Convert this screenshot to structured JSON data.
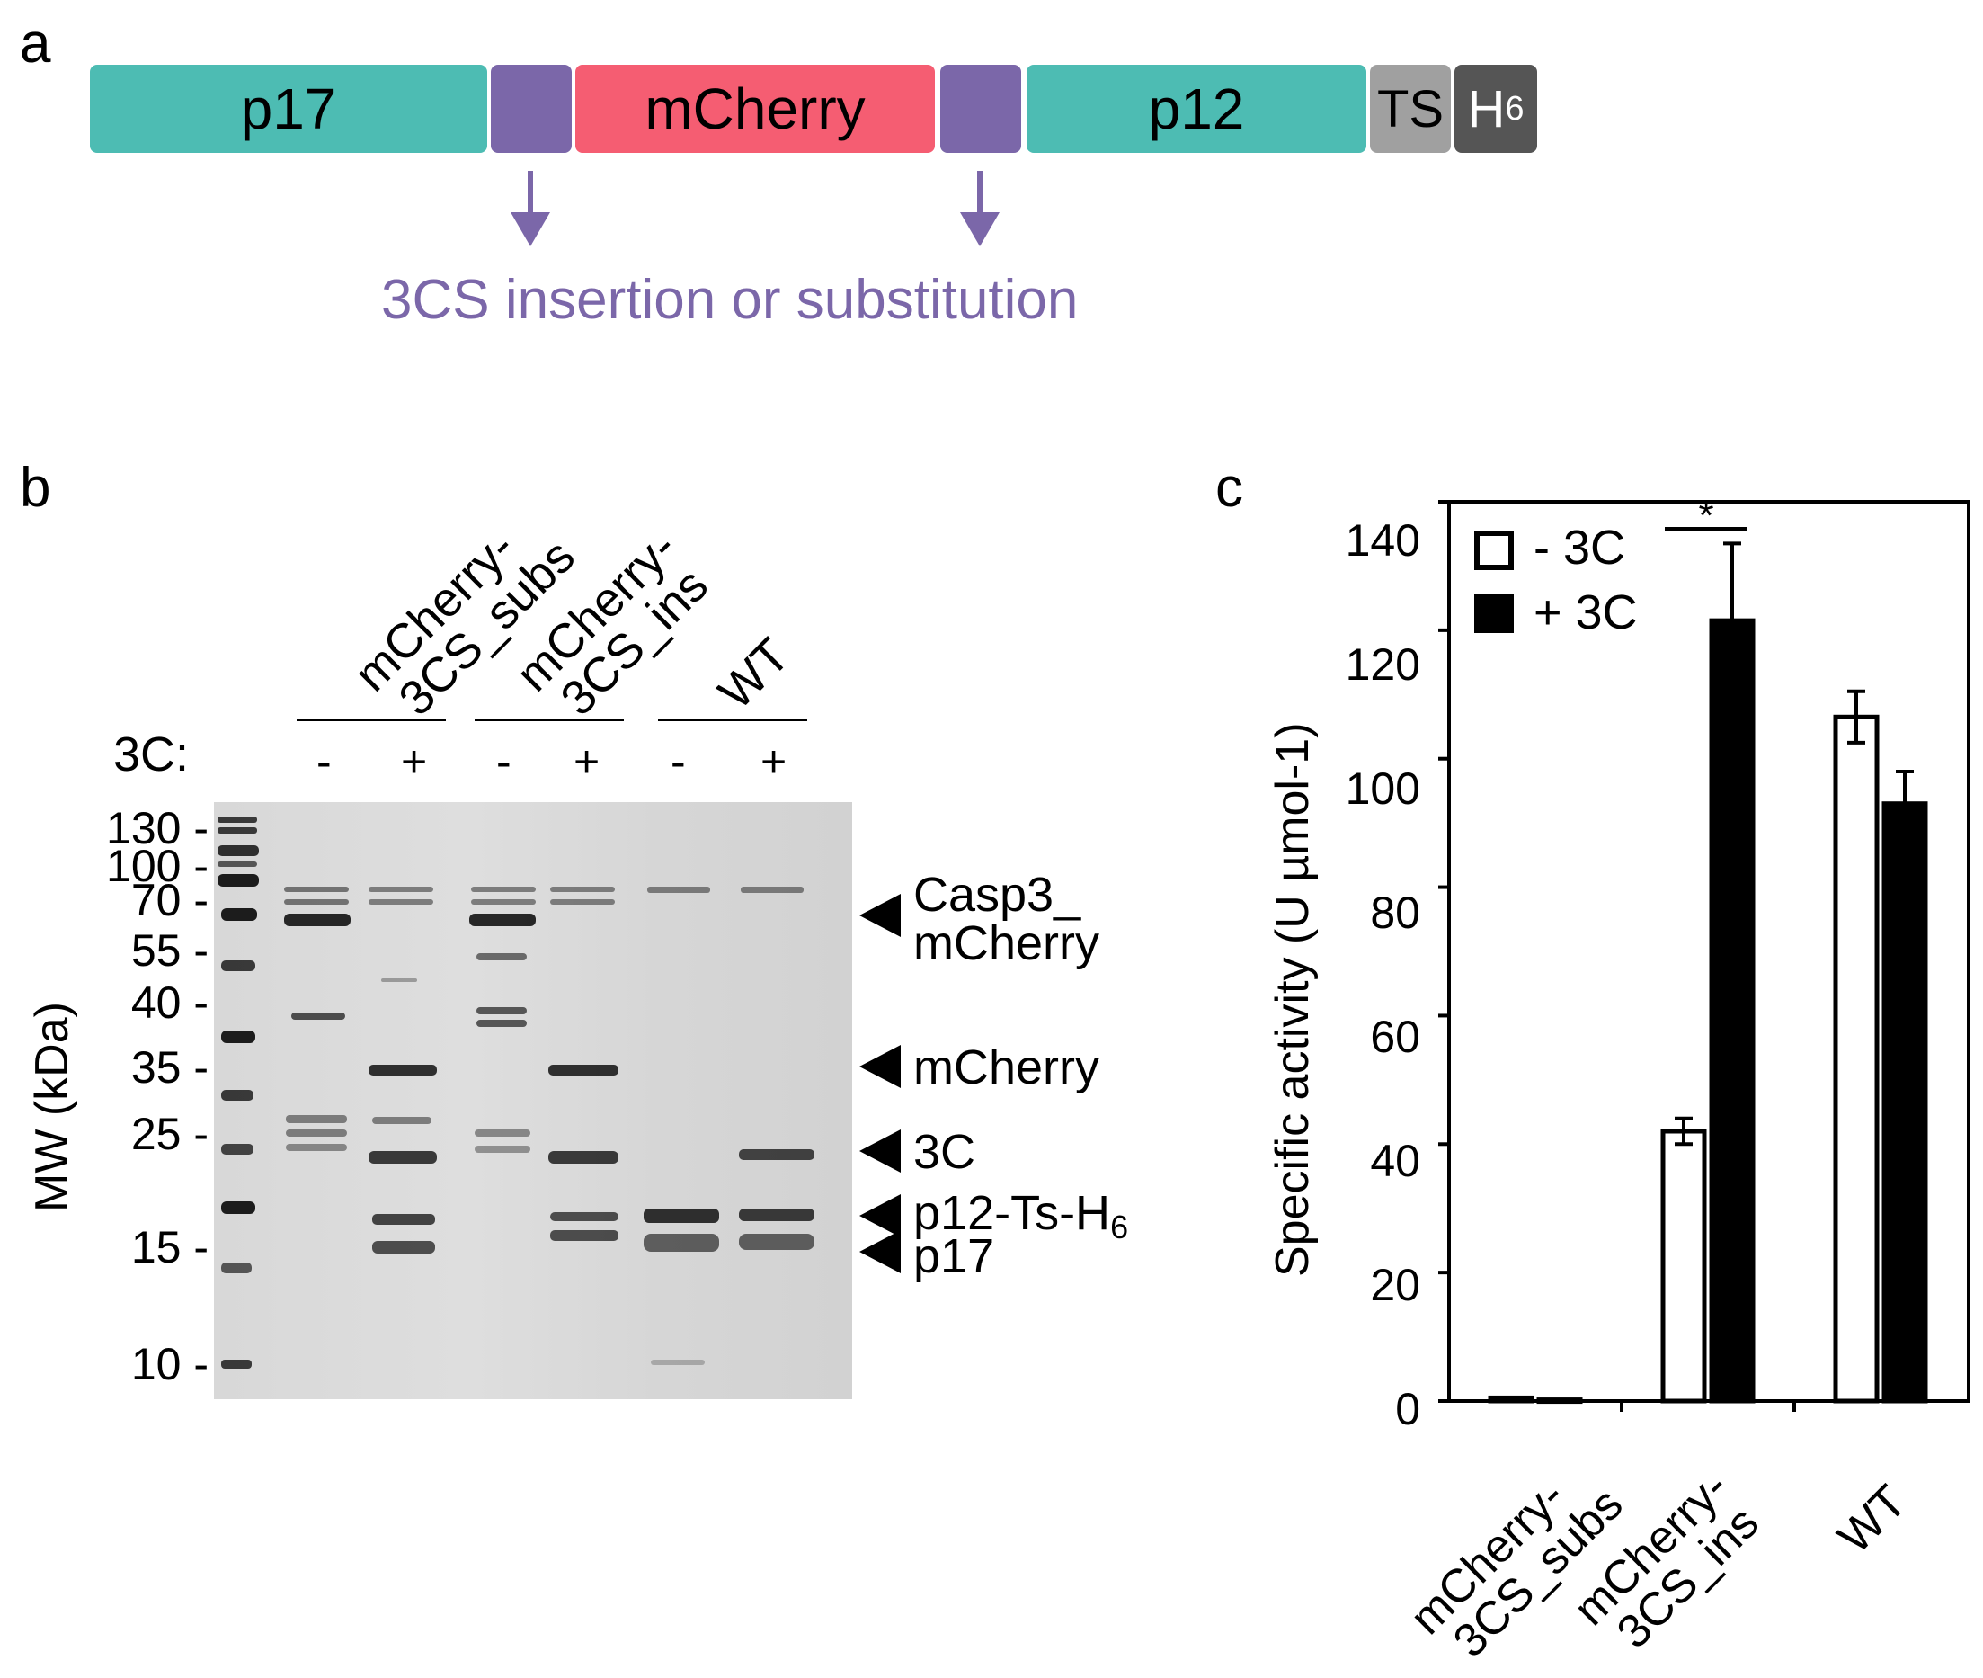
{
  "panel_a": {
    "letter": "a",
    "segments": [
      "p17",
      "",
      "mCherry",
      "",
      "p12",
      "TS",
      "H",
      "6"
    ],
    "annotation": "3CS insertion or substitution",
    "colors": {
      "p": "#4dbcb3",
      "linker": "#7b67a9",
      "mcherry": "#f55d72",
      "ts": "#a0a0a0",
      "his": "#555555"
    }
  },
  "panel_b": {
    "letter": "b",
    "lane_groups": [
      {
        "line1": "mCherry-",
        "line2": "3CS_subs"
      },
      {
        "line1": "mCherry-",
        "line2": "3CS_ins"
      },
      {
        "line1": "WT",
        "line2": ""
      }
    ],
    "row_label": "3C:",
    "signs": [
      "-",
      "+",
      "-",
      "+",
      "-",
      "+"
    ],
    "mw_title": "MW (kDa)",
    "mw_markers": [
      "130 -",
      "100 -",
      "70 -",
      "55 -",
      "40 -",
      "35 -",
      "25 -",
      "15 -",
      "10 -"
    ],
    "bands": [
      "Casp3_",
      "mCherry",
      "mCherry",
      "3C",
      "p12-Ts-H",
      "6",
      "p17"
    ]
  },
  "panel_c": {
    "letter": "c",
    "legend": [
      "- 3C",
      "+ 3C"
    ],
    "significance": "*",
    "x_categories": [
      {
        "line1": "mCherry-",
        "line2": "3CS_subs"
      },
      {
        "line1": "mCherry-",
        "line2": "3CS_ins"
      },
      {
        "line1": "WT",
        "line2": ""
      }
    ]
  },
  "chart_data": {
    "type": "bar",
    "title": "",
    "xlabel": "",
    "ylabel": "Specific activity (U µmol-1)",
    "categories": [
      "mCherry-3CS_subs",
      "mCherry-3CS_ins",
      "WT"
    ],
    "series": [
      {
        "name": "- 3C",
        "values": [
          0.5,
          42,
          106.5
        ],
        "errors": [
          0.3,
          2,
          4
        ],
        "fill": "#ffffff"
      },
      {
        "name": "+ 3C",
        "values": [
          0.2,
          121.5,
          93
        ],
        "errors": [
          0.1,
          12,
          5
        ],
        "fill": "#000000"
      }
    ],
    "ylim": [
      0,
      140
    ],
    "yticks": [
      "0",
      "20",
      "40",
      "60",
      "80",
      "100",
      "120",
      "140"
    ],
    "legend_position": "top-left",
    "grid": false
  }
}
